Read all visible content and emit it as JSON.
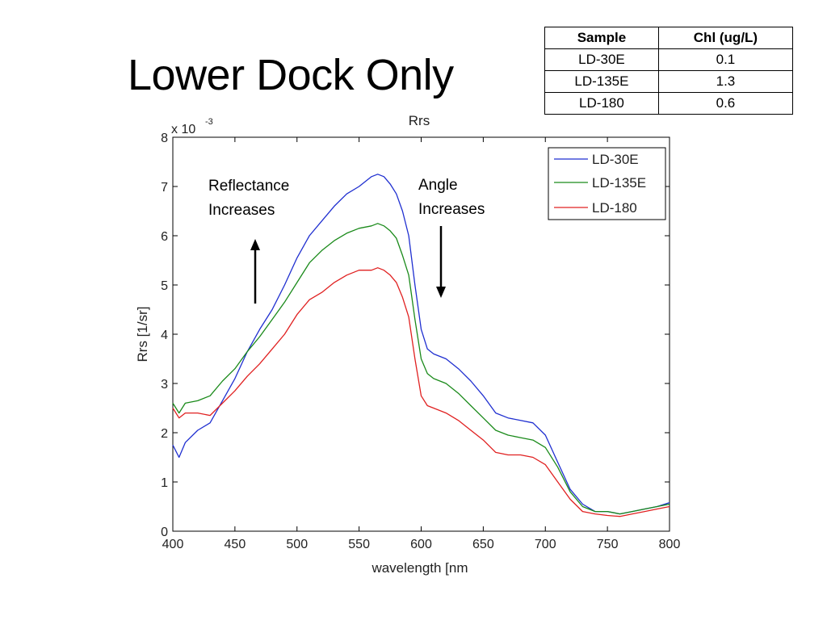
{
  "slide": {
    "title": "Lower Dock Only"
  },
  "table": {
    "headers": [
      "Sample",
      "Chl (ug/L)"
    ],
    "rows": [
      [
        "LD-30E",
        "0.1"
      ],
      [
        "LD-135E",
        "1.3"
      ],
      [
        "LD-180",
        "0.6"
      ]
    ]
  },
  "chart_data": {
    "type": "line",
    "title": "Rrs",
    "xlabel": "wavelength [nm",
    "ylabel": "Rrs [1/sr]",
    "y_multiplier_label": "x 10",
    "y_multiplier_exponent": "-3",
    "xlim": [
      400,
      800
    ],
    "ylim": [
      0,
      8
    ],
    "xticks": [
      "400",
      "450",
      "500",
      "550",
      "600",
      "650",
      "700",
      "750",
      "800"
    ],
    "yticks": [
      "0",
      "1",
      "2",
      "3",
      "4",
      "5",
      "6",
      "7",
      "8"
    ],
    "grid": false,
    "legend_position": "top-right",
    "x": [
      400,
      405,
      410,
      420,
      430,
      440,
      450,
      460,
      470,
      480,
      490,
      500,
      510,
      520,
      530,
      540,
      550,
      560,
      565,
      570,
      575,
      580,
      585,
      590,
      595,
      600,
      605,
      610,
      620,
      630,
      640,
      650,
      660,
      670,
      680,
      690,
      700,
      710,
      720,
      730,
      740,
      750,
      760,
      770,
      780,
      790,
      800
    ],
    "series": [
      {
        "name": "LD-30E",
        "color": "#1f2fd0",
        "values": [
          1.75,
          1.5,
          1.8,
          2.05,
          2.2,
          2.65,
          3.1,
          3.65,
          4.1,
          4.5,
          5.0,
          5.55,
          6.0,
          6.3,
          6.6,
          6.85,
          7.0,
          7.2,
          7.25,
          7.2,
          7.05,
          6.85,
          6.5,
          6.0,
          5.0,
          4.1,
          3.7,
          3.6,
          3.5,
          3.3,
          3.05,
          2.75,
          2.4,
          2.3,
          2.25,
          2.2,
          1.95,
          1.4,
          0.85,
          0.55,
          0.4,
          0.4,
          0.35,
          0.4,
          0.45,
          0.5,
          0.58
        ]
      },
      {
        "name": "LD-135E",
        "color": "#1a8a1a",
        "values": [
          2.6,
          2.4,
          2.6,
          2.65,
          2.75,
          3.05,
          3.3,
          3.65,
          3.95,
          4.3,
          4.65,
          5.05,
          5.45,
          5.7,
          5.9,
          6.05,
          6.15,
          6.2,
          6.25,
          6.2,
          6.1,
          5.95,
          5.6,
          5.2,
          4.3,
          3.5,
          3.2,
          3.1,
          3.0,
          2.8,
          2.55,
          2.3,
          2.05,
          1.95,
          1.9,
          1.85,
          1.7,
          1.3,
          0.8,
          0.5,
          0.4,
          0.4,
          0.35,
          0.4,
          0.45,
          0.5,
          0.55
        ]
      },
      {
        "name": "LD-180",
        "color": "#e02020",
        "values": [
          2.5,
          2.3,
          2.4,
          2.4,
          2.35,
          2.6,
          2.85,
          3.15,
          3.4,
          3.7,
          4.0,
          4.4,
          4.7,
          4.85,
          5.05,
          5.2,
          5.3,
          5.3,
          5.35,
          5.3,
          5.2,
          5.05,
          4.75,
          4.35,
          3.5,
          2.75,
          2.55,
          2.5,
          2.4,
          2.25,
          2.05,
          1.85,
          1.6,
          1.55,
          1.55,
          1.5,
          1.35,
          1.0,
          0.65,
          0.4,
          0.35,
          0.32,
          0.3,
          0.35,
          0.4,
          0.45,
          0.5
        ]
      }
    ],
    "annotations": [
      {
        "text": [
          "Reflectance",
          "Increases"
        ],
        "arrow": "up"
      },
      {
        "text": [
          "Angle",
          "Increases"
        ],
        "arrow": "down"
      }
    ]
  }
}
